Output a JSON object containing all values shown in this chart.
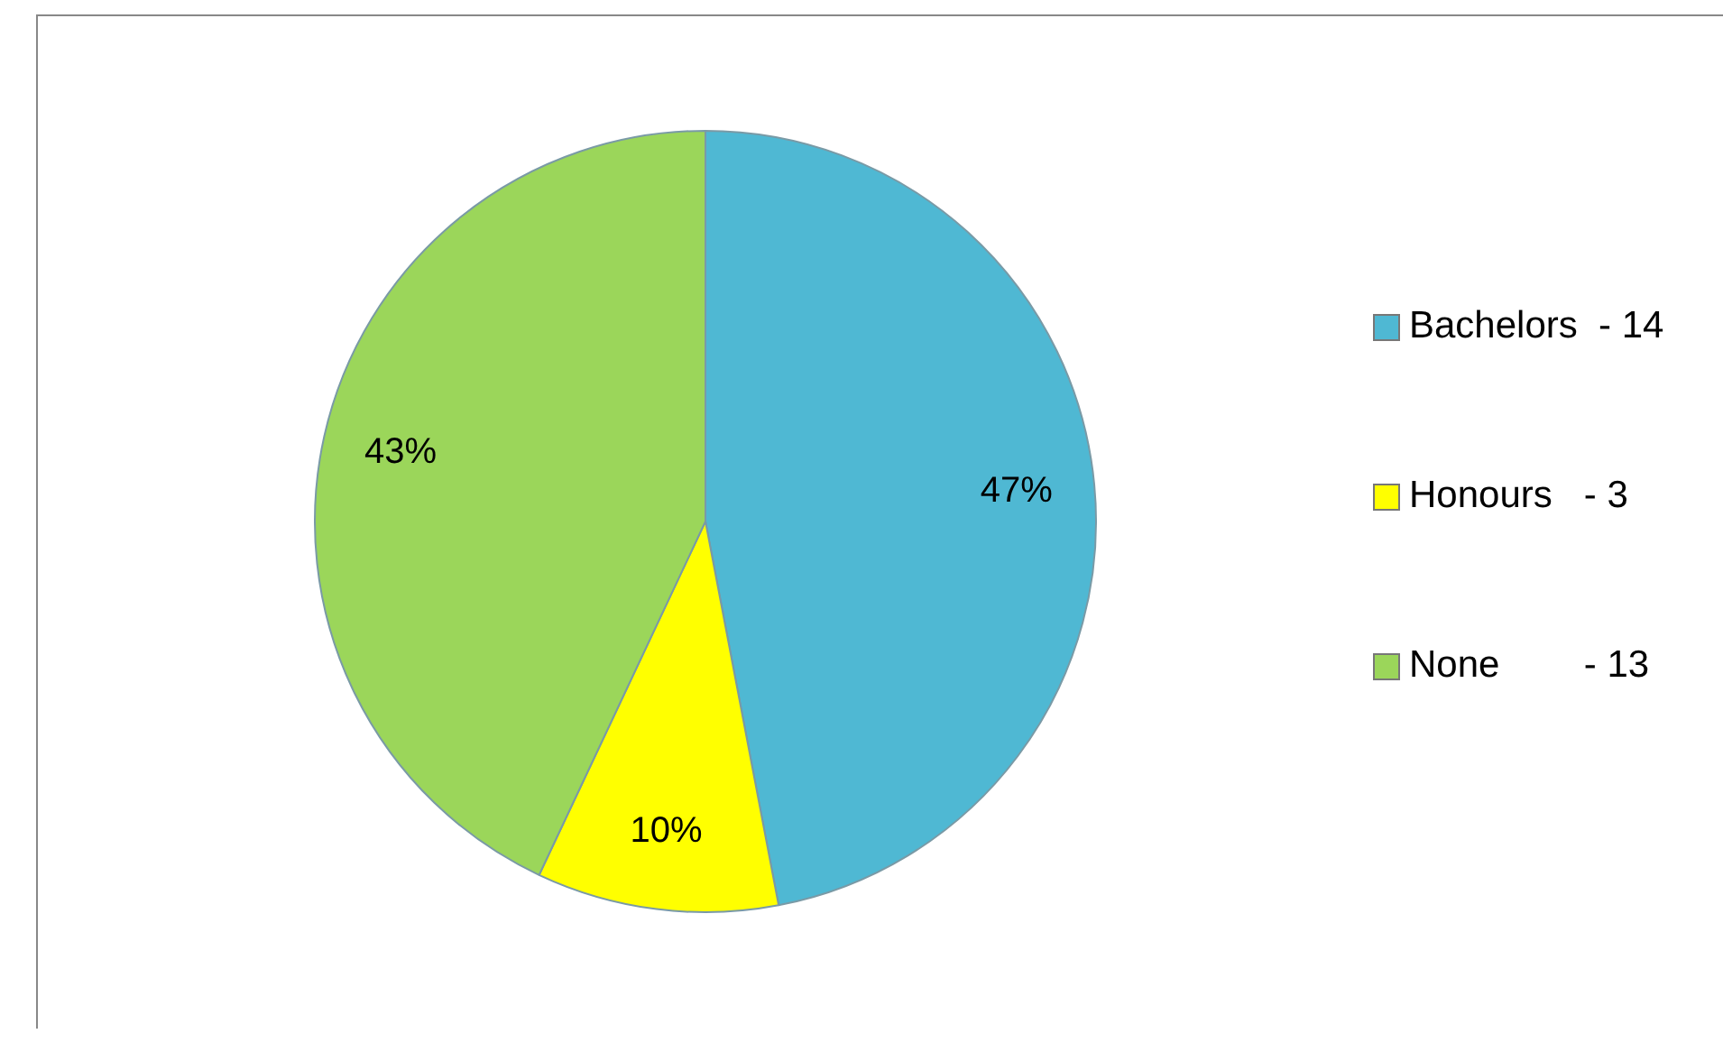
{
  "chart_data": {
    "type": "pie",
    "categories": [
      "Bachelors  - 14",
      "Honours   - 3",
      "None        - 13"
    ],
    "values": [
      47,
      10,
      43
    ],
    "colors": [
      "#4fb8d3",
      "#ffff00",
      "#9bd65a"
    ],
    "value_labels": [
      "47%",
      "10%",
      "43%"
    ],
    "legend": "right"
  }
}
